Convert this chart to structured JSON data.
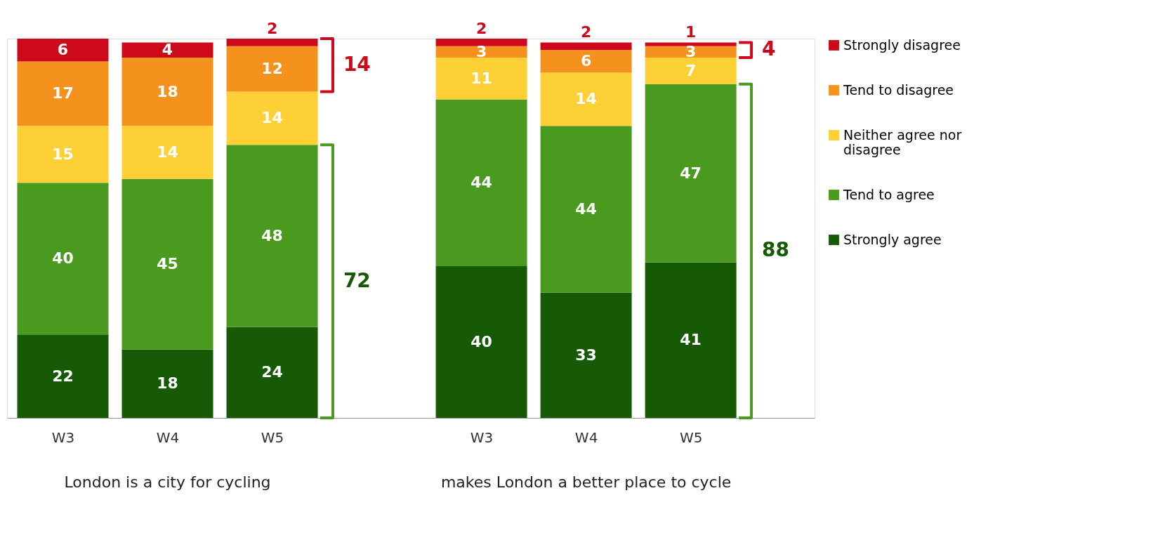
{
  "chart_data": {
    "type": "bar",
    "stacked": true,
    "data_labels": true,
    "legend": "right",
    "grid": false,
    "categories": [
      "W3",
      "W4",
      "W5",
      null,
      "W3",
      "W4",
      "W5"
    ],
    "series": [
      {
        "name": "Strongly agree",
        "color": "#165a06",
        "values": [
          22,
          18,
          24,
          null,
          40,
          33,
          41
        ]
      },
      {
        "name": "Tend to agree",
        "color": "#4a9a20",
        "values": [
          40,
          45,
          48,
          null,
          44,
          44,
          47
        ]
      },
      {
        "name": "Neither agree nor disagree",
        "color": "#fdd035",
        "values": [
          15,
          14,
          14,
          null,
          11,
          14,
          7
        ]
      },
      {
        "name": "Tend to disagree",
        "color": "#f5921e",
        "values": [
          17,
          18,
          12,
          null,
          3,
          6,
          3
        ]
      },
      {
        "name": "Strongly disagree",
        "color": "#cc0a1c",
        "values": [
          6,
          4,
          2,
          null,
          2,
          2,
          1
        ]
      }
    ],
    "annotations": [
      "14",
      "72",
      "4",
      "88",
      "London is a city for cycling",
      "makes London a better place to cycle"
    ]
  }
}
